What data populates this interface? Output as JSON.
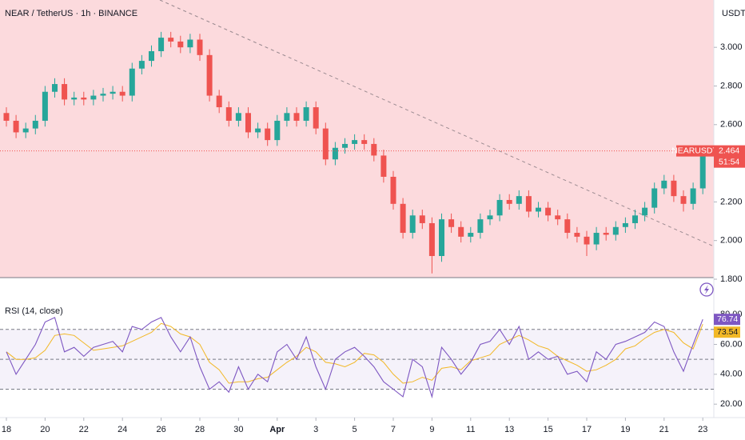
{
  "chart_data": [
    {
      "type": "candlestick",
      "title": "NEAR / TetherUS · 1h · BINANCE",
      "currency": "USDT",
      "symbol": "NEARUSDT",
      "countdown": "51:54",
      "up_color": "#26a69a",
      "down_color": "#ef5350",
      "background": "#fcdadd",
      "xlim": [
        -0.33,
        36.57
      ],
      "xticks": [
        {
          "value": 0,
          "label": "18"
        },
        {
          "value": 2,
          "label": "20"
        },
        {
          "value": 4,
          "label": "22"
        },
        {
          "value": 6,
          "label": "24"
        },
        {
          "value": 8,
          "label": "26"
        },
        {
          "value": 10,
          "label": "28"
        },
        {
          "value": 12,
          "label": "30"
        },
        {
          "value": 14,
          "label": "Apr"
        },
        {
          "value": 16,
          "label": "3"
        },
        {
          "value": 18,
          "label": "5"
        },
        {
          "value": 20,
          "label": "7"
        },
        {
          "value": 22,
          "label": "9"
        },
        {
          "value": 24,
          "label": "11"
        },
        {
          "value": 26,
          "label": "13"
        },
        {
          "value": 28,
          "label": "15"
        },
        {
          "value": 30,
          "label": "17"
        },
        {
          "value": 32,
          "label": "19"
        },
        {
          "value": 34,
          "label": "21"
        },
        {
          "value": 36,
          "label": "23"
        }
      ],
      "ylim": [
        1.8,
        3.245
      ],
      "yticks": [
        {
          "value": 1.8,
          "label": "1.800"
        },
        {
          "value": 2.0,
          "label": "2.000"
        },
        {
          "value": 2.2,
          "label": "2.200"
        },
        {
          "value": 2.6,
          "label": "2.600"
        },
        {
          "value": 2.8,
          "label": "2.800"
        },
        {
          "value": 3.0,
          "label": "3.000"
        }
      ],
      "x": [
        0,
        0.5,
        1,
        1.5,
        2,
        2.5,
        3,
        3.5,
        4,
        4.5,
        5,
        5.5,
        6,
        6.5,
        7,
        7.5,
        8,
        8.5,
        9,
        9.5,
        10,
        10.5,
        11,
        11.5,
        12,
        12.5,
        13,
        13.5,
        14,
        14.5,
        15,
        15.5,
        16,
        16.5,
        17,
        17.5,
        18,
        18.5,
        19,
        19.5,
        20,
        20.5,
        21,
        21.5,
        22,
        22.5,
        23,
        23.5,
        24,
        24.5,
        25,
        25.5,
        26,
        26.5,
        27,
        27.5,
        28,
        28.5,
        29,
        29.5,
        30,
        30.5,
        31,
        31.5,
        32,
        32.5,
        33,
        33.5,
        34,
        34.5,
        35,
        35.5,
        36
      ],
      "open": [
        2.66,
        2.62,
        2.56,
        2.58,
        2.62,
        2.77,
        2.81,
        2.73,
        2.74,
        2.73,
        2.75,
        2.76,
        2.77,
        2.75,
        2.89,
        2.93,
        2.98,
        3.05,
        3.03,
        3.0,
        3.04,
        2.96,
        2.75,
        2.69,
        2.62,
        2.66,
        2.56,
        2.58,
        2.52,
        2.62,
        2.66,
        2.62,
        2.69,
        2.58,
        2.42,
        2.48,
        2.5,
        2.52,
        2.5,
        2.44,
        2.33,
        2.19,
        2.04,
        2.13,
        2.09,
        1.92,
        2.11,
        2.07,
        2.02,
        2.04,
        2.11,
        2.13,
        2.21,
        2.19,
        2.23,
        2.15,
        2.17,
        2.13,
        2.11,
        2.04,
        2.02,
        1.98,
        2.04,
        2.03,
        2.07,
        2.09,
        2.13,
        2.17,
        2.27,
        2.31,
        2.23,
        2.19,
        2.27
      ],
      "high": [
        2.69,
        2.65,
        2.61,
        2.65,
        2.8,
        2.84,
        2.84,
        2.77,
        2.77,
        2.78,
        2.79,
        2.8,
        2.8,
        2.92,
        2.96,
        3.01,
        3.08,
        3.08,
        3.06,
        3.07,
        3.07,
        2.99,
        2.78,
        2.72,
        2.69,
        2.69,
        2.61,
        2.61,
        2.65,
        2.69,
        2.69,
        2.72,
        2.72,
        2.61,
        2.51,
        2.53,
        2.55,
        2.55,
        2.53,
        2.47,
        2.36,
        2.22,
        2.16,
        2.16,
        2.12,
        2.14,
        2.14,
        2.1,
        2.07,
        2.14,
        2.16,
        2.24,
        2.24,
        2.26,
        2.26,
        2.2,
        2.2,
        2.16,
        2.14,
        2.07,
        2.05,
        2.07,
        2.07,
        2.1,
        2.12,
        2.16,
        2.2,
        2.3,
        2.34,
        2.34,
        2.26,
        2.3,
        2.49
      ],
      "low": [
        2.59,
        2.53,
        2.53,
        2.55,
        2.59,
        2.74,
        2.7,
        2.7,
        2.7,
        2.7,
        2.72,
        2.73,
        2.72,
        2.72,
        2.86,
        2.9,
        2.95,
        3.0,
        2.97,
        2.97,
        2.93,
        2.72,
        2.66,
        2.59,
        2.59,
        2.53,
        2.53,
        2.49,
        2.49,
        2.59,
        2.59,
        2.59,
        2.55,
        2.39,
        2.39,
        2.45,
        2.47,
        2.47,
        2.41,
        2.3,
        2.16,
        2.01,
        2.01,
        2.06,
        1.83,
        1.89,
        2.04,
        1.99,
        1.99,
        2.01,
        2.08,
        2.1,
        2.16,
        2.16,
        2.12,
        2.12,
        2.1,
        2.08,
        2.01,
        1.99,
        1.92,
        1.95,
        2.0,
        2.0,
        2.04,
        2.06,
        2.1,
        2.14,
        2.24,
        2.2,
        2.15,
        2.16,
        2.24
      ],
      "close": [
        2.62,
        2.56,
        2.58,
        2.62,
        2.77,
        2.81,
        2.73,
        2.74,
        2.73,
        2.75,
        2.76,
        2.77,
        2.75,
        2.89,
        2.93,
        2.98,
        3.05,
        3.03,
        3.0,
        3.04,
        2.96,
        2.75,
        2.69,
        2.62,
        2.66,
        2.56,
        2.58,
        2.52,
        2.62,
        2.66,
        2.62,
        2.69,
        2.58,
        2.42,
        2.48,
        2.5,
        2.52,
        2.5,
        2.44,
        2.33,
        2.19,
        2.04,
        2.13,
        2.09,
        1.92,
        2.11,
        2.07,
        2.02,
        2.04,
        2.11,
        2.13,
        2.21,
        2.19,
        2.23,
        2.15,
        2.17,
        2.13,
        2.11,
        2.04,
        2.02,
        1.98,
        2.04,
        2.03,
        2.07,
        2.09,
        2.13,
        2.17,
        2.27,
        2.31,
        2.23,
        2.19,
        2.27,
        2.464
      ]
    },
    {
      "type": "line",
      "title": "RSI (14, close)",
      "ylim": [
        11,
        89.7
      ],
      "yticks": [
        {
          "value": 20,
          "label": "20.00"
        },
        {
          "value": 40,
          "label": "40.00"
        },
        {
          "value": 60,
          "label": "60.00"
        },
        {
          "value": 80,
          "label": "80.00"
        }
      ],
      "hlines": [
        70,
        50,
        30
      ],
      "band_color": "#7e57c2",
      "series": [
        {
          "color": "#7e57c2",
          "values": [
            55,
            40,
            50,
            60,
            75,
            78,
            55,
            58,
            52,
            58,
            60,
            62,
            55,
            72,
            70,
            75,
            78,
            65,
            55,
            65,
            45,
            30,
            35,
            28,
            45,
            30,
            40,
            35,
            55,
            60,
            50,
            65,
            45,
            30,
            50,
            55,
            58,
            52,
            45,
            35,
            30,
            25,
            50,
            45,
            25,
            58,
            50,
            40,
            48,
            60,
            62,
            70,
            60,
            72,
            50,
            55,
            50,
            52,
            40,
            42,
            35,
            55,
            50,
            60,
            62,
            65,
            68,
            75,
            72,
            55,
            42,
            60,
            76.74
          ]
        },
        {
          "color": "#f2b826",
          "values": [
            55,
            50,
            50,
            51,
            56,
            66,
            67,
            66,
            61,
            56,
            57,
            58,
            59,
            62,
            65,
            68,
            74,
            72,
            67,
            65,
            60,
            48,
            43,
            34,
            35,
            35,
            37,
            38,
            43,
            48,
            52,
            58,
            55,
            48,
            47,
            45,
            48,
            54,
            53,
            48,
            40,
            34,
            35,
            38,
            36,
            44,
            45,
            43,
            49,
            51,
            53,
            60,
            63,
            66,
            63,
            59,
            57,
            52,
            49,
            46,
            42,
            43,
            46,
            50,
            57,
            59,
            64,
            68,
            70,
            68,
            61,
            57,
            73.54
          ]
        }
      ]
    }
  ]
}
